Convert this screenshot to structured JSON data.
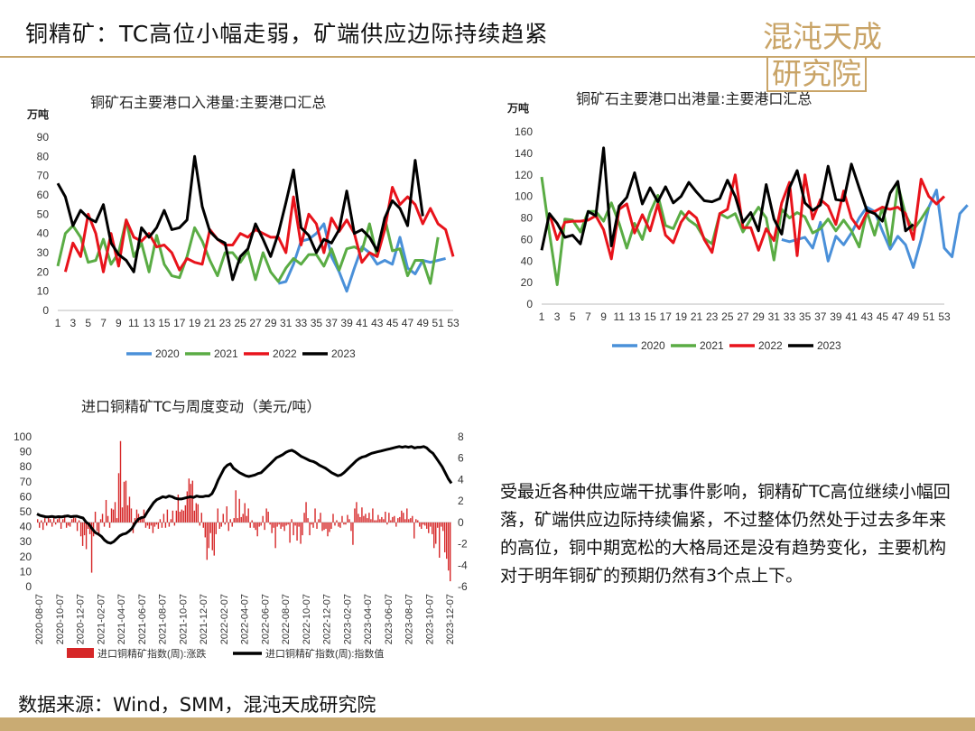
{
  "header": {
    "title": "铜精矿：TC高位小幅走弱，矿端供应边际持续趋紧",
    "logo_main": "混沌天成",
    "logo_box": "研究院"
  },
  "colors": {
    "y2020": "#4a90d9",
    "y2021": "#5aac44",
    "y2022": "#e8131b",
    "y2023": "#000000",
    "bar": "#d62728",
    "accent": "#c9a467"
  },
  "note": "受最近各种供应端干扰事件影响，铜精矿TC高位继续小幅回落，矿端供应边际持续偏紧，不过整体仍然处于过去多年来的高位，铜中期宽松的大格局还是没有趋势变化，主要机构对于明年铜矿的预期仍然有3个点上下。",
  "source": "数据来源：Wind，SMM，混沌天成研究院",
  "chart_data": [
    {
      "type": "line",
      "title": "铜矿石主要港口入港量:主要港口汇总",
      "unit": "万吨",
      "ylim": [
        0,
        90
      ],
      "yticks": [
        "0",
        "10",
        "20",
        "30",
        "40",
        "50",
        "60",
        "70",
        "80",
        "90"
      ],
      "xticks": [
        "1",
        "3",
        "5",
        "7",
        "9",
        "11",
        "13",
        "15",
        "17",
        "19",
        "21",
        "23",
        "25",
        "27",
        "29",
        "31",
        "33",
        "35",
        "37",
        "39",
        "41",
        "43",
        "45",
        "47",
        "49",
        "51",
        "53"
      ],
      "x_range": [
        1,
        53
      ],
      "series": [
        {
          "name": "2020",
          "color": "#4a90d9",
          "start": 30,
          "values": [
            14,
            15,
            24,
            36,
            37,
            40,
            45,
            28,
            20,
            10,
            22,
            33,
            30,
            24,
            26,
            24,
            38,
            22,
            19,
            26,
            25,
            26,
            27
          ]
        },
        {
          "name": "2021",
          "color": "#5aac44",
          "start": 1,
          "values": [
            23,
            40,
            44,
            38,
            25,
            26,
            37,
            24,
            30,
            47,
            28,
            35,
            20,
            39,
            24,
            18,
            17,
            28,
            43,
            36,
            26,
            18,
            30,
            30,
            25,
            31,
            16,
            30,
            20,
            15,
            22,
            27,
            24,
            29,
            29,
            23,
            32,
            21,
            32,
            33,
            31,
            45,
            28,
            48,
            31,
            32,
            18,
            26,
            26,
            14,
            38
          ]
        },
        {
          "name": "2022",
          "color": "#e8131b",
          "start": 2,
          "values": [
            20,
            35,
            28,
            50,
            40,
            20,
            40,
            23,
            47,
            38,
            36,
            40,
            33,
            34,
            30,
            21,
            27,
            25,
            24,
            42,
            37,
            34,
            34,
            40,
            38,
            42,
            40,
            38,
            38,
            30,
            59,
            34,
            50,
            45,
            30,
            48,
            41,
            47,
            40,
            25,
            30,
            28,
            42,
            64,
            55,
            59,
            55,
            45,
            53,
            45,
            42,
            28
          ]
        },
        {
          "name": "2023",
          "color": "#000000",
          "start": 1,
          "values": [
            66,
            59,
            44,
            52,
            48,
            46,
            55,
            35,
            29,
            26,
            20,
            43,
            38,
            43,
            52,
            42,
            43,
            47,
            80,
            54,
            41,
            37,
            35,
            16,
            28,
            32,
            45,
            37,
            28,
            40,
            56,
            73,
            43,
            39,
            30,
            37,
            35,
            42,
            62,
            40,
            42,
            38,
            31,
            48,
            57,
            53,
            44,
            78,
            49
          ]
        }
      ],
      "legend": [
        "2020",
        "2021",
        "2022",
        "2023"
      ]
    },
    {
      "type": "line",
      "title": "铜矿石主要港口出港量:主要港口汇总",
      "unit": "万吨",
      "ylim": [
        0,
        160
      ],
      "yticks": [
        "0",
        "20",
        "40",
        "60",
        "80",
        "100",
        "120",
        "140",
        "160"
      ],
      "xticks": [
        "1",
        "3",
        "5",
        "7",
        "9",
        "11",
        "13",
        "15",
        "17",
        "19",
        "21",
        "23",
        "25",
        "27",
        "29",
        "31",
        "33",
        "35",
        "37",
        "39",
        "41",
        "43",
        "45",
        "47",
        "49",
        "51",
        "53"
      ],
      "x_range": [
        1,
        53
      ],
      "series": [
        {
          "name": "2020",
          "color": "#4a90d9",
          "start": 32,
          "values": [
            60,
            58,
            60,
            62,
            52,
            76,
            40,
            63,
            55,
            66,
            80,
            90,
            86,
            68,
            51,
            63,
            55,
            34,
            60,
            90,
            106,
            52,
            44,
            84,
            92
          ]
        },
        {
          "name": "2021",
          "color": "#5aac44",
          "start": 1,
          "values": [
            118,
            66,
            18,
            79,
            78,
            67,
            86,
            86,
            77,
            94,
            75,
            52,
            75,
            60,
            85,
            101,
            73,
            70,
            86,
            78,
            73,
            61,
            56,
            84,
            80,
            84,
            67,
            79,
            90,
            80,
            41,
            88,
            80,
            85,
            81,
            66,
            70,
            79,
            68,
            78,
            68,
            53,
            86,
            64,
            90,
            55,
            111,
            83,
            69,
            79,
            90
          ]
        },
        {
          "name": "2022",
          "color": "#e8131b",
          "start": 2,
          "values": [
            84,
            60,
            76,
            77,
            77,
            78,
            82,
            69,
            42,
            88,
            93,
            66,
            83,
            68,
            93,
            64,
            57,
            76,
            86,
            80,
            60,
            48,
            84,
            88,
            120,
            71,
            71,
            50,
            70,
            59,
            94,
            113,
            45,
            120,
            79,
            97,
            91,
            74,
            105,
            80,
            70,
            85,
            86,
            90,
            88,
            90,
            84,
            60,
            116,
            100,
            93,
            100
          ]
        },
        {
          "name": "2023",
          "color": "#000000",
          "start": 1,
          "values": [
            50,
            84,
            75,
            62,
            64,
            56,
            86,
            82,
            145,
            54,
            91,
            99,
            122,
            93,
            108,
            95,
            109,
            94,
            100,
            113,
            104,
            96,
            95,
            98,
            115,
            100,
            76,
            85,
            68,
            111,
            79,
            65,
            108,
            124,
            94,
            87,
            92,
            128,
            97,
            96,
            130,
            108,
            87,
            84,
            77,
            103,
            114,
            68,
            74
          ]
        }
      ],
      "legend": [
        "2020",
        "2021",
        "2022",
        "2023"
      ]
    },
    {
      "type": "bar",
      "title": "进口铜精矿TC与周度变动（美元/吨）",
      "ylim_left": [
        0,
        100
      ],
      "yticks_left": [
        "0",
        "10",
        "20",
        "30",
        "40",
        "50",
        "60",
        "70",
        "80",
        "90",
        "100"
      ],
      "ylim_right": [
        -6,
        8
      ],
      "yticks_right": [
        "-6",
        "-4",
        "-2",
        "0",
        "2",
        "4",
        "6",
        "8"
      ],
      "xticks": [
        "2020-08-07",
        "2020-10-07",
        "2020-12-07",
        "2021-02-07",
        "2021-04-07",
        "2021-06-07",
        "2021-08-07",
        "2021-10-07",
        "2021-12-07",
        "2022-02-07",
        "2022-04-07",
        "2022-06-07",
        "2022-08-07",
        "2022-10-07",
        "2022-12-07",
        "2023-02-07",
        "2023-04-07",
        "2023-06-07",
        "2023-08-07",
        "2023-10-07",
        "2023-12-07"
      ],
      "series": [
        {
          "name": "进口铜精矿指数(周):涨跌",
          "color": "#d62728",
          "axis": "right",
          "values": [
            0.3,
            -0.5,
            0.2,
            -0.7,
            0.4,
            -0.3,
            0.5,
            0.3,
            -0.4,
            0.6,
            -0.2,
            0.3,
            0.5,
            -0.6,
            0.3,
            0.7,
            -0.5,
            -0.3,
            -0.4,
            0.3,
            0.6,
            0.4,
            -0.8,
            0.2,
            -1.3,
            -2.2,
            -1.2,
            -2.5,
            -0.6,
            -1.1,
            -4.7,
            -1.3,
            1.0,
            -0.8,
            -1.0,
            0.3,
            0.8,
            -0.4,
            2.1,
            0.6,
            -0.5,
            1.3,
            1.2,
            1.9,
            0.4,
            4.6,
            7.6,
            1.4,
            3.8,
            3.9,
            1.6,
            2.4,
            1.3,
            -1.0,
            0.4,
            1.2,
            0.8,
            0.5,
            0.6,
            1.2,
            -0.5,
            -0.3,
            -0.6,
            -0.3,
            -1.0,
            -0.4,
            -0.2,
            -0.6,
            0.3,
            -0.5,
            0.8,
            -0.5,
            1.2,
            -0.4,
            0.3,
            1.1,
            -0.3,
            1.1,
            2.6,
            1.0,
            1.2,
            1.1,
            1.6,
            2.9,
            4.1,
            3.6,
            3.9,
            1.1,
            1.8,
            1.7,
            -0.3,
            0.9,
            -0.5,
            -1.4,
            -3.5,
            -2.4,
            -1.0,
            -2.6,
            -3.1,
            -1.1,
            1.3,
            -0.6,
            -0.4,
            0.8,
            -0.2,
            1.5,
            -0.8,
            0.3,
            -0.4,
            0.4,
            3.0,
            0.4,
            2.2,
            0.5,
            0.8,
            1.8,
            0.6,
            1.3,
            -0.5,
            0.2,
            -0.5,
            -0.7,
            -1.3,
            -0.4,
            -0.3,
            0.6,
            -0.7,
            1.3,
            1.0,
            -0.2,
            -1.0,
            -0.5,
            -2.4,
            -0.4,
            -0.2,
            -0.6,
            -0.4,
            -0.8,
            -0.3,
            -0.2,
            -1.9,
            0.3,
            -1.2,
            -0.3,
            -1.7,
            -0.4,
            -2.0,
            -1.2,
            0.9,
            1.9,
            0.4,
            -1.2,
            -0.2,
            -0.5,
            1.3,
            -0.6,
            0.3,
            0.9,
            -0.8,
            -0.7,
            -0.6,
            -1.3,
            -0.9,
            -0.6,
            0.8,
            -0.3,
            0.2,
            -0.4,
            -0.5,
            0.6,
            -0.2,
            -0.2,
            0.7,
            0.3,
            -0.8,
            -2.1,
            1.3,
            1.9,
            0.8,
            0.5,
            1.4,
            0.6,
            0.8,
            0.4,
            0.9,
            0.3,
            1.3,
            0.2,
            0.2,
            0.7,
            0.3,
            0.5,
            0.3,
            1.0,
            -0.2,
            0.9,
            0.2,
            0.5,
            0.6,
            -0.4,
            0.4,
            0.5,
            1.1,
            0.9,
            0.3,
            1.3,
            0.3,
            0.4,
            0.6,
            -1.5,
            0.3,
            0.2,
            -0.4,
            -0.6,
            -0.2,
            -0.3,
            -0.6,
            -1.0,
            -0.4,
            -1.1,
            -2.4,
            -2.0,
            -0.5,
            -3.3,
            -0.4,
            -0.8,
            -2.8,
            -3.4,
            -4.5,
            -5.5
          ]
        },
        {
          "name": "进口铜精矿指数(周):指数值",
          "color": "#000000",
          "axis": "left",
          "values": [
            48.5,
            47.5,
            47.0,
            46.5,
            46.6,
            46.8,
            46.4,
            46.7,
            46.5,
            46.9,
            47.2,
            46.6,
            46.9,
            47.0,
            46.3,
            45.8,
            43.0,
            41.5,
            38.5,
            36.0,
            35.0,
            33.5,
            31.0,
            29.5,
            29.0,
            30.0,
            32.0,
            34.0,
            35.0,
            35.5,
            37.0,
            39.0,
            42.5,
            45.0,
            46.0,
            46.5,
            50.0,
            53.0,
            56.0,
            58.0,
            59.0,
            60.0,
            59.5,
            60.5,
            60.0,
            59.0,
            58.5,
            58.5,
            59.0,
            59.5,
            60.0,
            59.5,
            60.5,
            60.0,
            60.0,
            60.5,
            60.5,
            62.0,
            66.0,
            71.0,
            75.0,
            79.0,
            81.0,
            82.0,
            79.0,
            77.5,
            76.0,
            75.0,
            74.0,
            73.5,
            74.0,
            74.5,
            75.5,
            76.0,
            78.0,
            80.0,
            82.0,
            84.0,
            86.0,
            87.0,
            88.0,
            89.5,
            90.5,
            91.0,
            90.0,
            88.5,
            87.0,
            86.0,
            85.0,
            84.0,
            83.5,
            82.5,
            81.0,
            80.0,
            79.0,
            77.5,
            76.0,
            75.0,
            74.0,
            74.5,
            76.0,
            78.0,
            80.0,
            82.0,
            84.0,
            85.5,
            86.5,
            87.0,
            88.0,
            89.0,
            89.5,
            90.0,
            90.5,
            91.0,
            91.5,
            92.0,
            92.5,
            93.0,
            93.5,
            93.0,
            93.5,
            93.0,
            93.5,
            92.5,
            93.0,
            93.0,
            93.5,
            92.5,
            90.5,
            89.0,
            86.0,
            83.0,
            80.0,
            76.0,
            72.0,
            69.0
          ]
        }
      ],
      "legend": [
        "进口铜精矿指数(周):涨跌",
        "进口铜精矿指数(周):指数值"
      ]
    }
  ]
}
